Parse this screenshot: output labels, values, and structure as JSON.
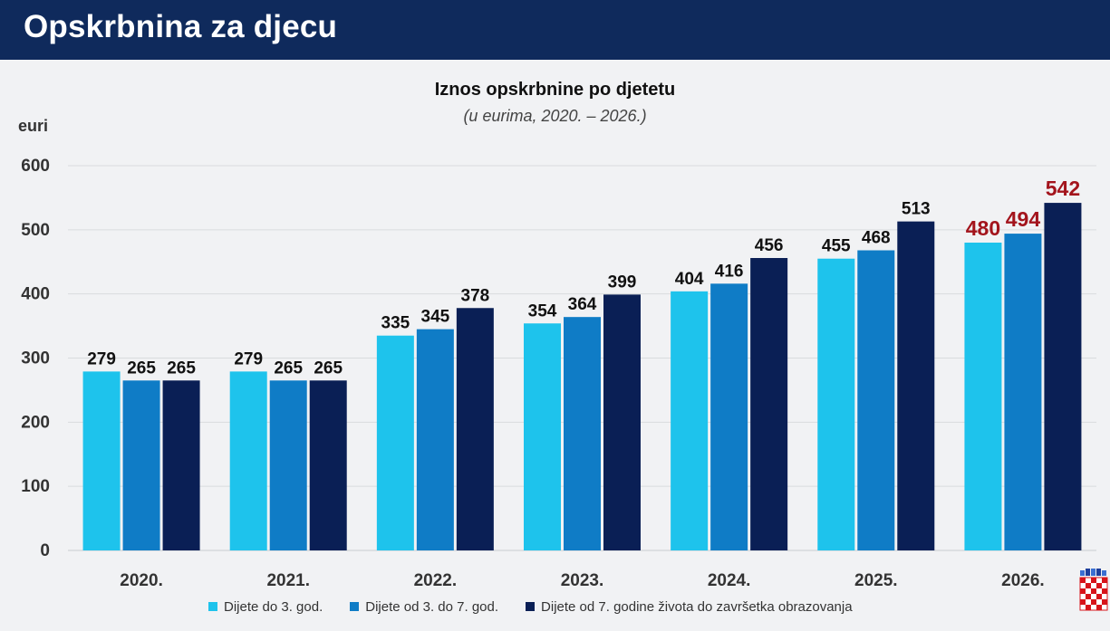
{
  "header": {
    "title": "Opskrbnina za djecu"
  },
  "chart_data": {
    "type": "bar",
    "title": "Iznos opskrbnine po djetetu",
    "subtitle": "(u eurima, 2020. – 2026.)",
    "ylabel": "euri",
    "ylim": [
      0,
      600
    ],
    "yticks": [
      0,
      100,
      200,
      300,
      400,
      500,
      600
    ],
    "grid": true,
    "legend_position": "bottom",
    "categories": [
      "2020.",
      "2021.",
      "2022.",
      "2023.",
      "2024.",
      "2025.",
      "2026."
    ],
    "series": [
      {
        "name": "Dijete do 3. god.",
        "color": "#1ec3ec",
        "values": [
          279,
          279,
          335,
          354,
          404,
          455,
          480
        ]
      },
      {
        "name": "Dijete od 3. do 7. god.",
        "color": "#0f7cc6",
        "values": [
          265,
          265,
          345,
          364,
          416,
          468,
          494
        ]
      },
      {
        "name": "Dijete od 7. godine života do završetka obrazovanja",
        "color": "#0a1f55",
        "values": [
          265,
          265,
          378,
          399,
          456,
          513,
          542
        ]
      }
    ],
    "highlight_category": "2026.",
    "highlight_label_color": "#a3141c"
  }
}
